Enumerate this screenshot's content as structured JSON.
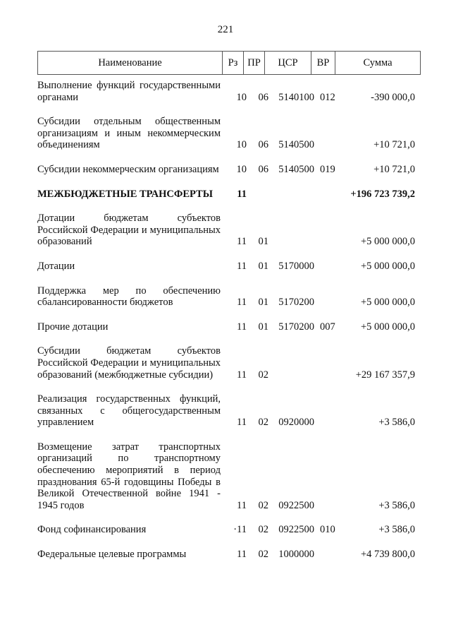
{
  "page_number": "221",
  "header": {
    "name": "Наименование",
    "rz": "Рз",
    "pr": "ПР",
    "csr": "ЦСР",
    "vr": "ВР",
    "sum": "Сумма"
  },
  "rows": [
    {
      "name": "Выполнение функций государственными органами",
      "rz": "10",
      "pr": "06",
      "csr": "5140100",
      "vr": "012",
      "sum": "-390 000,0",
      "bold": false
    },
    {
      "name": "Субсидии отдельным общественным организациям и иным некоммерческим объединениям",
      "rz": "10",
      "pr": "06",
      "csr": "5140500",
      "vr": "",
      "sum": "+10 721,0",
      "bold": false
    },
    {
      "name": "Субсидии некоммерческим организациям",
      "rz": "10",
      "pr": "06",
      "csr": "5140500",
      "vr": "019",
      "sum": "+10 721,0",
      "bold": false
    },
    {
      "name": "МЕЖБЮДЖЕТНЫЕ ТРАНСФЕРТЫ",
      "rz": "11",
      "pr": "",
      "csr": "",
      "vr": "",
      "sum": "+196 723 739,2",
      "bold": true
    },
    {
      "name": "Дотации бюджетам субъектов Российской Федерации и муниципальных образований",
      "rz": "11",
      "pr": "01",
      "csr": "",
      "vr": "",
      "sum": "+5 000 000,0",
      "bold": false
    },
    {
      "name": "Дотации",
      "rz": "11",
      "pr": "01",
      "csr": "5170000",
      "vr": "",
      "sum": "+5 000 000,0",
      "bold": false
    },
    {
      "name": "Поддержка мер по обеспечению сбалансированности бюджетов",
      "rz": "11",
      "pr": "01",
      "csr": "5170200",
      "vr": "",
      "sum": "+5 000 000,0",
      "bold": false
    },
    {
      "name": "Прочие дотации",
      "rz": "11",
      "pr": "01",
      "csr": "5170200",
      "vr": "007",
      "sum": "+5 000 000,0",
      "bold": false
    },
    {
      "name": "Субсидии бюджетам субъектов Российской Федерации и муниципальных образований (межбюджетные субсидии)",
      "rz": "11",
      "pr": "02",
      "csr": "",
      "vr": "",
      "sum": "+29 167 357,9",
      "bold": false
    },
    {
      "name": "Реализация государственных функций, связанных с общегосударственным управлением",
      "rz": "11",
      "pr": "02",
      "csr": "0920000",
      "vr": "",
      "sum": "+3 586,0",
      "bold": false
    },
    {
      "name": "Возмещение затрат транспортных организаций по транспортному обеспечению мероприятий в период празднования 65-й годовщины Победы в Великой Отечественной войне 1941 - 1945 годов",
      "rz": "11",
      "pr": "02",
      "csr": "0922500",
      "vr": "",
      "sum": "+3 586,0",
      "bold": false
    },
    {
      "name": "Фонд софинансирования",
      "rz": "·11",
      "pr": "02",
      "csr": "0922500",
      "vr": "010",
      "sum": "+3 586,0",
      "bold": false
    },
    {
      "name": "Федеральные целевые программы",
      "rz": "11",
      "pr": "02",
      "csr": "1000000",
      "vr": "",
      "sum": "+4 739 800,0",
      "bold": false
    }
  ]
}
